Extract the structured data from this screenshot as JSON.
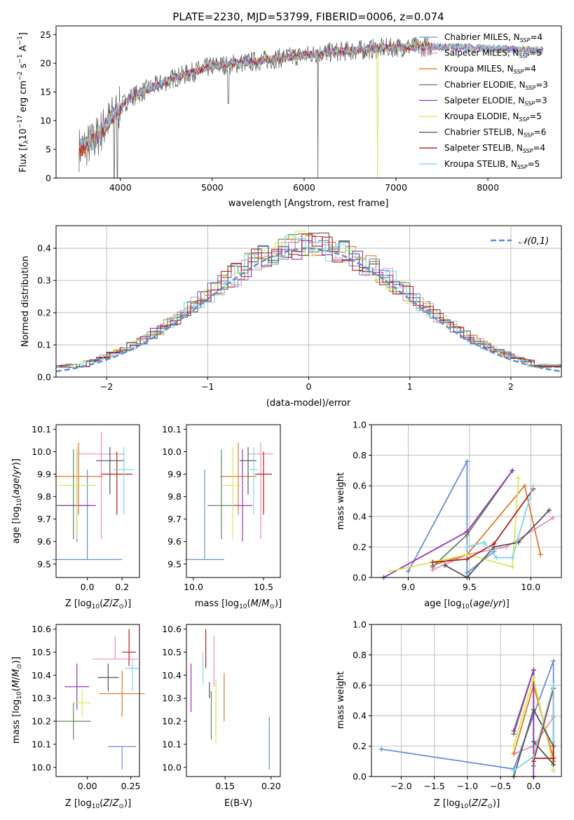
{
  "title": "PLATE=2230, MJD=53799, FIBERID=0006, z=0.074",
  "colors": {
    "Chabrier MILES": "#6a8fd6",
    "Salpeter MILES": "#e88fc4",
    "Kroupa MILES": "#e07b2a",
    "Chabrier ELODIE": "#5e8a5e",
    "Salpeter ELODIE": "#9932b8",
    "Kroupa ELODIE": "#d5e85a",
    "Chabrier STELIB": "#555555",
    "Salpeter STELIB": "#b3201a",
    "Kroupa STELIB": "#7fd8e0"
  },
  "chart_data": [
    {
      "type": "line",
      "xlabel": "wavelength [Angstrom, rest frame]",
      "ylabel": "Flux [f_λ10^-17 erg cm^-2 s^-1 A^-1]",
      "xlim": [
        3300,
        8800
      ],
      "ylim": [
        0,
        26.5
      ],
      "xticks": [
        4000,
        5000,
        6000,
        7000,
        8000
      ],
      "yticks": [
        0,
        5,
        10,
        15,
        20,
        25
      ],
      "legend_position": "upper-right",
      "continuum": {
        "x": [
          3550,
          3700,
          3900,
          4100,
          4300,
          4600,
          5000,
          5400,
          5800,
          6200,
          6600,
          7000,
          7400,
          7800,
          8200,
          8600
        ],
        "y": [
          5,
          6.2,
          10.5,
          14,
          15.5,
          17.5,
          19.5,
          20.2,
          21,
          21.8,
          22.3,
          22.8,
          22.9,
          22.7,
          22.4,
          22.2
        ]
      },
      "series": [
        {
          "name": "Chabrier MILES",
          "nssp": 4
        },
        {
          "name": "Salpeter MILES",
          "nssp": 5
        },
        {
          "name": "Kroupa MILES",
          "nssp": 4
        },
        {
          "name": "Chabrier ELODIE",
          "nssp": 3
        },
        {
          "name": "Salpeter ELODIE",
          "nssp": 3
        },
        {
          "name": "Kroupa ELODIE",
          "nssp": 5
        },
        {
          "name": "Chabrier STELIB",
          "nssp": 6
        },
        {
          "name": "Salpeter STELIB",
          "nssp": 4
        },
        {
          "name": "Kroupa STELIB",
          "nssp": 5
        }
      ]
    },
    {
      "type": "histogram",
      "xlabel": "(data-model)/error",
      "ylabel": "Normed distribution",
      "xlim": [
        -2.5,
        2.5
      ],
      "ylim": [
        0,
        0.47
      ],
      "xticks": [
        -2,
        -1,
        0,
        1,
        2
      ],
      "yticks": [
        0.0,
        0.1,
        0.2,
        0.3,
        0.4
      ],
      "grid": true,
      "legend_label": "𝒩(0,1)",
      "legend_position": "upper-right",
      "bin_width": 0.1,
      "reference": {
        "mean": 0,
        "sigma": 1
      }
    },
    {
      "type": "scatter",
      "xlabel": "Z [log10(Z/Z⊙)]",
      "ylabel": "age [log10(age/yr)]",
      "xlim": [
        -0.18,
        0.3
      ],
      "ylim": [
        9.44,
        10.12
      ],
      "xticks": [
        0.0,
        0.2
      ],
      "yticks": [
        9.5,
        9.6,
        9.7,
        9.8,
        9.9,
        10.0,
        10.1
      ],
      "points": [
        {
          "series": "Chabrier MILES",
          "x": 0.0,
          "y": 9.52,
          "xerr": 0.2,
          "yerr": [
            0.0,
            0.4
          ]
        },
        {
          "series": "Salpeter MILES",
          "x": 0.08,
          "y": 9.99,
          "xerr": 0.13,
          "yerr": [
            0.38,
            0.1
          ]
        },
        {
          "series": "Kroupa MILES",
          "x": -0.05,
          "y": 9.89,
          "xerr": 0.14,
          "yerr": [
            0.17,
            0.15
          ]
        },
        {
          "series": "Chabrier ELODIE",
          "x": -0.08,
          "y": 9.76,
          "xerr": 0.1,
          "yerr": [
            0.15,
            0.25
          ]
        },
        {
          "series": "Salpeter ELODIE",
          "x": -0.06,
          "y": 9.76,
          "xerr": 0.11,
          "yerr": [
            0.16,
            0.25
          ]
        },
        {
          "series": "Kroupa ELODIE",
          "x": -0.06,
          "y": 9.85,
          "xerr": 0.11,
          "yerr": [
            0.24,
            0.17
          ]
        },
        {
          "series": "Chabrier STELIB",
          "x": 0.13,
          "y": 9.96,
          "xerr": 0.08,
          "yerr": [
            0.15,
            0.06
          ]
        },
        {
          "series": "Salpeter STELIB",
          "x": 0.17,
          "y": 9.9,
          "xerr": 0.09,
          "yerr": [
            0.18,
            0.1
          ]
        },
        {
          "series": "Kroupa STELIB",
          "x": 0.21,
          "y": 9.92,
          "xerr": 0.06,
          "yerr": [
            0.2,
            0.1
          ]
        }
      ]
    },
    {
      "type": "scatter",
      "xlabel": "mass [log10(M/M⊙)]",
      "xlim": [
        9.95,
        10.62
      ],
      "ylim": [
        9.44,
        10.12
      ],
      "xticks": [
        10.0,
        10.5
      ],
      "yticks": [
        9.5,
        9.6,
        9.7,
        9.8,
        9.9,
        10.0,
        10.1
      ],
      "points": [
        {
          "series": "Chabrier MILES",
          "x": 10.08,
          "y": 9.52,
          "xerr": 0.14,
          "yerr": [
            0.0,
            0.4
          ]
        },
        {
          "series": "Salpeter MILES",
          "x": 10.48,
          "y": 9.99,
          "xerr": 0.09,
          "yerr": [
            0.38,
            0.05
          ]
        },
        {
          "series": "Kroupa MILES",
          "x": 10.32,
          "y": 9.89,
          "xerr": 0.13,
          "yerr": [
            0.17,
            0.15
          ]
        },
        {
          "series": "Chabrier ELODIE",
          "x": 10.2,
          "y": 9.76,
          "xerr": 0.1,
          "yerr": [
            0.15,
            0.25
          ]
        },
        {
          "series": "Salpeter ELODIE",
          "x": 10.35,
          "y": 9.76,
          "xerr": 0.07,
          "yerr": [
            0.16,
            0.25
          ]
        },
        {
          "series": "Kroupa ELODIE",
          "x": 10.28,
          "y": 9.85,
          "xerr": 0.08,
          "yerr": [
            0.24,
            0.17
          ]
        },
        {
          "series": "Chabrier STELIB",
          "x": 10.39,
          "y": 9.96,
          "xerr": 0.06,
          "yerr": [
            0.15,
            0.06
          ]
        },
        {
          "series": "Salpeter STELIB",
          "x": 10.5,
          "y": 9.9,
          "xerr": 0.06,
          "yerr": [
            0.18,
            0.1
          ]
        },
        {
          "series": "Kroupa STELIB",
          "x": 10.43,
          "y": 9.92,
          "xerr": 0.03,
          "yerr": [
            0.2,
            0.1
          ]
        }
      ]
    },
    {
      "type": "line",
      "xlabel": "age [log10(age/yr)]",
      "ylabel": "mass weight",
      "xlim": [
        8.7,
        10.25
      ],
      "ylim": [
        0,
        1
      ],
      "xticks": [
        9.0,
        9.5,
        10.0
      ],
      "yticks": [
        0.0,
        0.2,
        0.4,
        0.6,
        0.8,
        1.0
      ],
      "grid": true,
      "series": [
        {
          "name": "Chabrier MILES",
          "x": [
            9.0,
            9.48,
            9.48,
            9.7
          ],
          "y": [
            0.04,
            0.76,
            0.03,
            0.17
          ]
        },
        {
          "name": "Salpeter MILES",
          "x": [
            9.2,
            9.48,
            9.8,
            10.18
          ],
          "y": [
            0.05,
            0.15,
            0.2,
            0.39
          ]
        },
        {
          "name": "Kroupa MILES",
          "x": [
            9.2,
            9.48,
            9.95,
            10.08
          ],
          "y": [
            0.08,
            0.15,
            0.6,
            0.15
          ]
        },
        {
          "name": "Chabrier ELODIE",
          "x": [
            9.2,
            9.48,
            9.85
          ],
          "y": [
            0.07,
            0.28,
            0.7
          ]
        },
        {
          "name": "Salpeter ELODIE",
          "x": [
            8.8,
            9.48,
            9.85
          ],
          "y": [
            0.0,
            0.3,
            0.7
          ]
        },
        {
          "name": "Kroupa ELODIE",
          "x": [
            8.85,
            9.48,
            9.85,
            9.9
          ],
          "y": [
            0.04,
            0.15,
            0.07,
            0.65
          ]
        },
        {
          "name": "Chabrier STELIB",
          "x": [
            9.3,
            9.48,
            9.7,
            9.9,
            10.15
          ],
          "y": [
            0.08,
            0.0,
            0.2,
            0.23,
            0.44
          ]
        },
        {
          "name": "Salpeter STELIB",
          "x": [
            9.2,
            9.48,
            9.7,
            10.02
          ],
          "y": [
            0.1,
            0.12,
            0.22,
            0.58
          ]
        },
        {
          "name": "Kroupa STELIB",
          "x": [
            9.48,
            9.62,
            9.72,
            9.85,
            10.02
          ],
          "y": [
            0.2,
            0.23,
            0.13,
            0.13,
            0.6
          ]
        }
      ]
    },
    {
      "type": "scatter",
      "xlabel": "Z [log10(Z/Z⊙)]",
      "ylabel": "mass [log10(M/M⊙)]",
      "xlim": [
        -0.18,
        0.3
      ],
      "ylim": [
        9.96,
        10.62
      ],
      "xticks": [
        0.0,
        0.25
      ],
      "yticks": [
        10.0,
        10.1,
        10.2,
        10.3,
        10.4,
        10.5,
        10.6
      ],
      "points": [
        {
          "series": "Chabrier MILES",
          "x": 0.2,
          "y": 10.09,
          "xerr": 0.08,
          "yerr": [
            0.1,
            0.0
          ]
        },
        {
          "series": "Salpeter MILES",
          "x": 0.16,
          "y": 10.47,
          "xerr": 0.13,
          "yerr": [
            0.0,
            0.1
          ]
        },
        {
          "series": "Kroupa MILES",
          "x": 0.2,
          "y": 10.32,
          "xerr": 0.13,
          "yerr": [
            0.1,
            0.1
          ]
        },
        {
          "series": "Chabrier ELODIE",
          "x": -0.08,
          "y": 10.2,
          "xerr": 0.1,
          "yerr": [
            0.08,
            0.08
          ]
        },
        {
          "series": "Salpeter ELODIE",
          "x": -0.06,
          "y": 10.35,
          "xerr": 0.07,
          "yerr": [
            0.1,
            0.1
          ]
        },
        {
          "series": "Kroupa ELODIE",
          "x": -0.03,
          "y": 10.28,
          "xerr": 0.05,
          "yerr": [
            0.06,
            0.06
          ]
        },
        {
          "series": "Chabrier STELIB",
          "x": 0.12,
          "y": 10.39,
          "xerr": 0.06,
          "yerr": [
            0.06,
            0.06
          ]
        },
        {
          "series": "Salpeter STELIB",
          "x": 0.24,
          "y": 10.5,
          "xerr": 0.04,
          "yerr": [
            0.06,
            0.1
          ]
        },
        {
          "series": "Kroupa STELIB",
          "x": 0.26,
          "y": 10.43,
          "xerr": 0.04,
          "yerr": [
            0.1,
            0.04
          ]
        }
      ]
    },
    {
      "type": "scatter",
      "xlabel": "E(B-V)",
      "xlim": [
        0.108,
        0.21
      ],
      "ylim": [
        9.96,
        10.62
      ],
      "xticks": [
        0.15,
        0.2
      ],
      "yticks": [
        10.0,
        10.1,
        10.2,
        10.3,
        10.4,
        10.5,
        10.6
      ],
      "points": [
        {
          "series": "Chabrier MILES",
          "x": 0.198,
          "y": 10.09,
          "yerr": [
            0.1,
            0.13
          ]
        },
        {
          "series": "Salpeter MILES",
          "x": 0.138,
          "y": 10.48,
          "yerr": [
            0.13,
            0.09
          ]
        },
        {
          "series": "Kroupa MILES",
          "x": 0.149,
          "y": 10.32,
          "yerr": [
            0.12,
            0.09
          ]
        },
        {
          "series": "Chabrier ELODIE",
          "x": 0.135,
          "y": 10.2,
          "yerr": [
            0.08,
            0.13
          ]
        },
        {
          "series": "Salpeter ELODIE",
          "x": 0.113,
          "y": 10.35,
          "yerr": [
            0.11,
            0.1
          ]
        },
        {
          "series": "Kroupa ELODIE",
          "x": 0.14,
          "y": 10.28,
          "yerr": [
            0.18,
            0.1
          ]
        },
        {
          "series": "Chabrier STELIB",
          "x": 0.133,
          "y": 10.34,
          "yerr": [
            0.04,
            0.03
          ]
        },
        {
          "series": "Salpeter STELIB",
          "x": 0.129,
          "y": 10.5,
          "yerr": [
            0.07,
            0.1
          ]
        },
        {
          "series": "Kroupa STELIB",
          "x": 0.126,
          "y": 10.43,
          "yerr": [
            0.07,
            0.07
          ]
        }
      ]
    },
    {
      "type": "line",
      "xlabel": "Z [log10(Z/Z⊙)]",
      "ylabel": "mass weight",
      "xlim": [
        -2.45,
        0.42
      ],
      "ylim": [
        0,
        1
      ],
      "xticks": [
        -2.0,
        -1.5,
        -1.0,
        -0.5,
        0.0
      ],
      "yticks": [
        0.0,
        0.2,
        0.4,
        0.6,
        0.8,
        1.0
      ],
      "grid": true,
      "series": [
        {
          "name": "Chabrier MILES",
          "x": [
            -2.3,
            -0.3,
            0.3,
            0.3
          ],
          "y": [
            0.18,
            0.05,
            0.76,
            0.04
          ]
        },
        {
          "name": "Salpeter MILES",
          "x": [
            -0.3,
            0.0,
            0.3
          ],
          "y": [
            0.15,
            0.2,
            0.39
          ]
        },
        {
          "name": "Kroupa MILES",
          "x": [
            -0.3,
            0.0,
            0.3,
            0.3
          ],
          "y": [
            0.15,
            0.6,
            0.12,
            0.1
          ]
        },
        {
          "name": "Chabrier ELODIE",
          "x": [
            -0.3,
            0.0,
            0.0
          ],
          "y": [
            0.28,
            0.7,
            0.07
          ]
        },
        {
          "name": "Salpeter ELODIE",
          "x": [
            -0.3,
            0.0,
            0.0
          ],
          "y": [
            0.3,
            0.7,
            0.0
          ]
        },
        {
          "name": "Kroupa ELODIE",
          "x": [
            -0.3,
            0.0,
            0.3,
            0.3
          ],
          "y": [
            0.2,
            0.65,
            0.07,
            0.04
          ]
        },
        {
          "name": "Chabrier STELIB",
          "x": [
            -0.3,
            0.0,
            0.3,
            0.3,
            0.0
          ],
          "y": [
            0.0,
            0.44,
            0.2,
            0.08,
            0.23
          ]
        },
        {
          "name": "Salpeter STELIB",
          "x": [
            0.0,
            0.3,
            0.3,
            0.0
          ],
          "y": [
            0.1,
            0.58,
            0.12,
            0.12
          ]
        },
        {
          "name": "Kroupa STELIB",
          "x": [
            -0.3,
            0.0,
            0.3,
            0.3
          ],
          "y": [
            0.04,
            0.13,
            0.6,
            0.23
          ]
        }
      ]
    }
  ]
}
